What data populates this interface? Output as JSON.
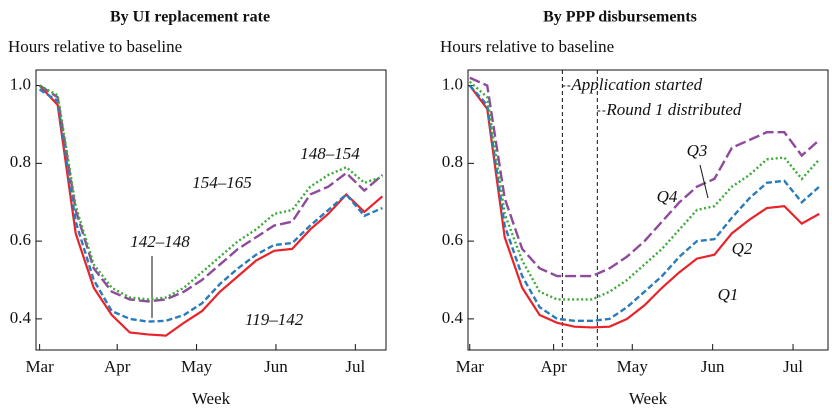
{
  "chart_data": [
    {
      "type": "line",
      "title": "By UI replacement rate",
      "subtitle": "Hours relative to baseline",
      "x_label": "Week",
      "x": [
        0,
        1,
        2,
        3,
        4,
        5,
        6,
        7,
        8,
        9,
        10,
        11,
        12,
        13,
        14,
        15,
        16,
        17,
        18,
        19
      ],
      "xlim": [
        -0.2,
        19.2
      ],
      "xticks": [
        {
          "value": 0,
          "label": "Mar"
        },
        {
          "value": 4.3,
          "label": "Apr"
        },
        {
          "value": 8.7,
          "label": "May"
        },
        {
          "value": 13.1,
          "label": "Jun"
        },
        {
          "value": 17.5,
          "label": "Jul"
        }
      ],
      "ylim": [
        0.32,
        1.04
      ],
      "yticks": [
        0.4,
        0.6,
        0.8,
        {
          "value": 1,
          "label": "1.0"
        }
      ],
      "series": [
        {
          "name": "119–142",
          "color": "#e8242b",
          "linestyle": "solid",
          "values": [
            1.0,
            0.95,
            0.62,
            0.48,
            0.41,
            0.365,
            0.36,
            0.357,
            0.39,
            0.42,
            0.47,
            0.51,
            0.55,
            0.575,
            0.58,
            0.63,
            0.67,
            0.72,
            0.675,
            0.715
          ]
        },
        {
          "name": "142–148",
          "color": "#2b7bba",
          "linestyle": "dashed",
          "values": [
            0.99,
            0.96,
            0.65,
            0.5,
            0.42,
            0.4,
            0.393,
            0.395,
            0.41,
            0.44,
            0.49,
            0.53,
            0.565,
            0.59,
            0.595,
            0.64,
            0.68,
            0.72,
            0.665,
            0.685
          ]
        },
        {
          "name": "148–154",
          "color": "#8e4b9c",
          "linestyle": "longdash",
          "values": [
            1.0,
            0.97,
            0.68,
            0.53,
            0.47,
            0.45,
            0.445,
            0.45,
            0.47,
            0.5,
            0.54,
            0.58,
            0.61,
            0.64,
            0.65,
            0.72,
            0.74,
            0.775,
            0.73,
            0.77
          ]
        },
        {
          "name": "154–165",
          "color": "#3aaa35",
          "linestyle": "dotted",
          "values": [
            1.0,
            0.975,
            0.69,
            0.54,
            0.48,
            0.455,
            0.45,
            0.455,
            0.48,
            0.52,
            0.56,
            0.6,
            0.63,
            0.67,
            0.68,
            0.74,
            0.77,
            0.79,
            0.75,
            0.765
          ]
        }
      ]
    },
    {
      "type": "line",
      "title": "By PPP disbursements",
      "subtitle": "Hours relative to baseline",
      "x_label": "Week",
      "x": [
        0,
        1,
        2,
        3,
        4,
        5,
        6,
        7,
        8,
        9,
        10,
        11,
        12,
        13,
        14,
        15,
        16,
        17,
        18,
        19,
        20
      ],
      "xlim": [
        -0.1,
        20.5
      ],
      "xticks": [
        {
          "value": 0,
          "label": "Mar"
        },
        {
          "value": 4.8,
          "label": "Apr"
        },
        {
          "value": 9.3,
          "label": "May"
        },
        {
          "value": 13.9,
          "label": "Jun"
        },
        {
          "value": 18.5,
          "label": "Jul"
        }
      ],
      "ylim": [
        0.32,
        1.04
      ],
      "yticks": [
        0.4,
        0.6,
        0.8,
        {
          "value": 1,
          "label": "1.0"
        }
      ],
      "vlines": [
        {
          "x": 5.3,
          "label": "Application started"
        },
        {
          "x": 7.3,
          "label": "Round 1 distributed"
        }
      ],
      "series": [
        {
          "name": "Q1",
          "color": "#e8242b",
          "linestyle": "solid",
          "values": [
            1.0,
            0.94,
            0.61,
            0.48,
            0.41,
            0.39,
            0.38,
            0.378,
            0.38,
            0.4,
            0.435,
            0.48,
            0.52,
            0.555,
            0.565,
            0.62,
            0.655,
            0.685,
            0.69,
            0.645,
            0.67
          ]
        },
        {
          "name": "Q2",
          "color": "#2b7bba",
          "linestyle": "dashed",
          "values": [
            1.0,
            0.95,
            0.64,
            0.51,
            0.43,
            0.4,
            0.395,
            0.395,
            0.4,
            0.43,
            0.47,
            0.51,
            0.56,
            0.6,
            0.605,
            0.66,
            0.71,
            0.75,
            0.755,
            0.7,
            0.74
          ]
        },
        {
          "name": "Q3",
          "color": "#8e4b9c",
          "linestyle": "longdash",
          "values": [
            1.02,
            1.0,
            0.71,
            0.58,
            0.53,
            0.51,
            0.51,
            0.51,
            0.53,
            0.56,
            0.6,
            0.65,
            0.7,
            0.74,
            0.76,
            0.84,
            0.86,
            0.88,
            0.88,
            0.82,
            0.86
          ]
        },
        {
          "name": "Q4",
          "color": "#3aaa35",
          "linestyle": "dotted",
          "values": [
            1.01,
            0.97,
            0.67,
            0.55,
            0.47,
            0.45,
            0.45,
            0.45,
            0.47,
            0.5,
            0.54,
            0.58,
            0.63,
            0.68,
            0.69,
            0.74,
            0.77,
            0.81,
            0.815,
            0.76,
            0.81
          ]
        }
      ]
    }
  ]
}
